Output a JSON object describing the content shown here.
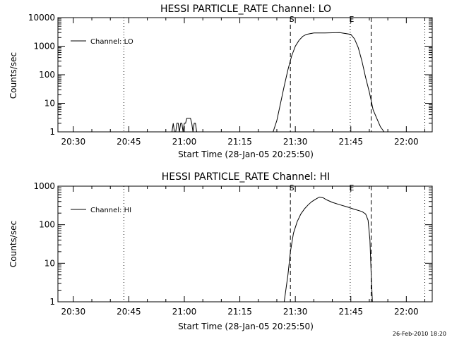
{
  "footer": {
    "timestamp": "26-Feb-2010 18:20"
  },
  "chart_data": [
    {
      "type": "line",
      "title": "HESSI PARTICLE_RATE Channel: LO",
      "xlabel": "Start Time (28-Jan-05 20:25:50)",
      "ylabel": "Counts/sec",
      "yscale": "log",
      "ylim": [
        1,
        10000
      ],
      "xlim": [
        "20:25:50",
        "22:07:00"
      ],
      "yticks": [
        "1",
        "10",
        "100",
        "1000",
        "10000"
      ],
      "xticks": [
        "20:30",
        "20:45",
        "21:00",
        "21:15",
        "21:30",
        "21:45",
        "22:00"
      ],
      "legend": {
        "position": "top-left",
        "entries": [
          "Channel: LO"
        ]
      },
      "vlines": [
        {
          "time": "20:43:40",
          "style": "dotted",
          "label": ""
        },
        {
          "time": "21:28:40",
          "style": "dashed",
          "label": "S"
        },
        {
          "time": "21:44:50",
          "style": "dotted",
          "label": "E"
        },
        {
          "time": "21:50:30",
          "style": "dashed",
          "label": ""
        },
        {
          "time": "22:05:00",
          "style": "dotted",
          "label": ""
        }
      ],
      "series": [
        {
          "name": "Channel: LO",
          "x": [
            "20:56:40",
            "20:57:00",
            "20:57:20",
            "20:57:40",
            "20:58:00",
            "20:58:20",
            "20:58:40",
            "20:59:00",
            "20:59:20",
            "20:59:40",
            "21:00:00",
            "21:00:20",
            "21:00:40",
            "21:01:00",
            "21:01:20",
            "21:01:40",
            "21:02:00",
            "21:02:20",
            "21:02:40",
            "21:03:00",
            "21:03:20",
            "21:03:40",
            "21:04:00",
            "21:24:00",
            "21:25:00",
            "21:26:00",
            "21:27:00",
            "21:28:00",
            "21:29:00",
            "21:30:00",
            "21:31:00",
            "21:32:00",
            "21:33:00",
            "21:35:00",
            "21:38:00",
            "21:42:00",
            "21:45:00",
            "21:46:00",
            "21:47:00",
            "21:48:00",
            "21:49:00",
            "21:50:00",
            "21:50:40",
            "21:51:00",
            "21:52:00",
            "21:53:00",
            "21:54:00"
          ],
          "y": [
            1,
            2,
            1,
            1,
            2,
            2,
            1,
            2,
            2,
            1,
            2,
            2,
            3,
            3,
            3,
            3,
            2,
            1,
            2,
            2,
            1,
            1,
            1,
            1,
            2.5,
            10,
            40,
            150,
            450,
            1000,
            1600,
            2200,
            2600,
            2900,
            2900,
            3000,
            2600,
            1800,
            900,
            300,
            80,
            25,
            10,
            6,
            3,
            1.5,
            1
          ]
        }
      ]
    },
    {
      "type": "line",
      "title": "HESSI PARTICLE_RATE Channel: HI",
      "xlabel": "Start Time (28-Jan-05 20:25:50)",
      "ylabel": "Counts/sec",
      "yscale": "log",
      "ylim": [
        1,
        1000
      ],
      "xlim": [
        "20:25:50",
        "22:07:00"
      ],
      "yticks": [
        "1",
        "10",
        "100",
        "1000"
      ],
      "xticks": [
        "20:30",
        "20:45",
        "21:00",
        "21:15",
        "21:30",
        "21:45",
        "22:00"
      ],
      "legend": {
        "position": "top-left",
        "entries": [
          "Channel: HI"
        ]
      },
      "vlines": [
        {
          "time": "20:43:40",
          "style": "dotted",
          "label": ""
        },
        {
          "time": "21:28:40",
          "style": "dashed",
          "label": "S"
        },
        {
          "time": "21:44:50",
          "style": "dotted",
          "label": "E"
        },
        {
          "time": "21:50:30",
          "style": "dashed",
          "label": ""
        },
        {
          "time": "22:05:00",
          "style": "dotted",
          "label": ""
        }
      ],
      "series": [
        {
          "name": "Channel: HI",
          "x": [
            "21:27:00",
            "21:28:00",
            "21:28:40",
            "21:29:30",
            "21:30:30",
            "21:31:30",
            "21:32:30",
            "21:33:30",
            "21:34:30",
            "21:35:30",
            "21:36:30",
            "21:37:30",
            "21:38:30",
            "21:40:00",
            "21:42:00",
            "21:44:00",
            "21:46:00",
            "21:48:00",
            "21:49:00",
            "21:49:40",
            "21:50:10",
            "21:50:30",
            "21:50:50"
          ],
          "y": [
            1,
            5,
            20,
            60,
            120,
            190,
            260,
            330,
            400,
            460,
            520,
            500,
            440,
            380,
            330,
            290,
            250,
            220,
            190,
            130,
            40,
            5,
            1
          ]
        }
      ]
    }
  ]
}
